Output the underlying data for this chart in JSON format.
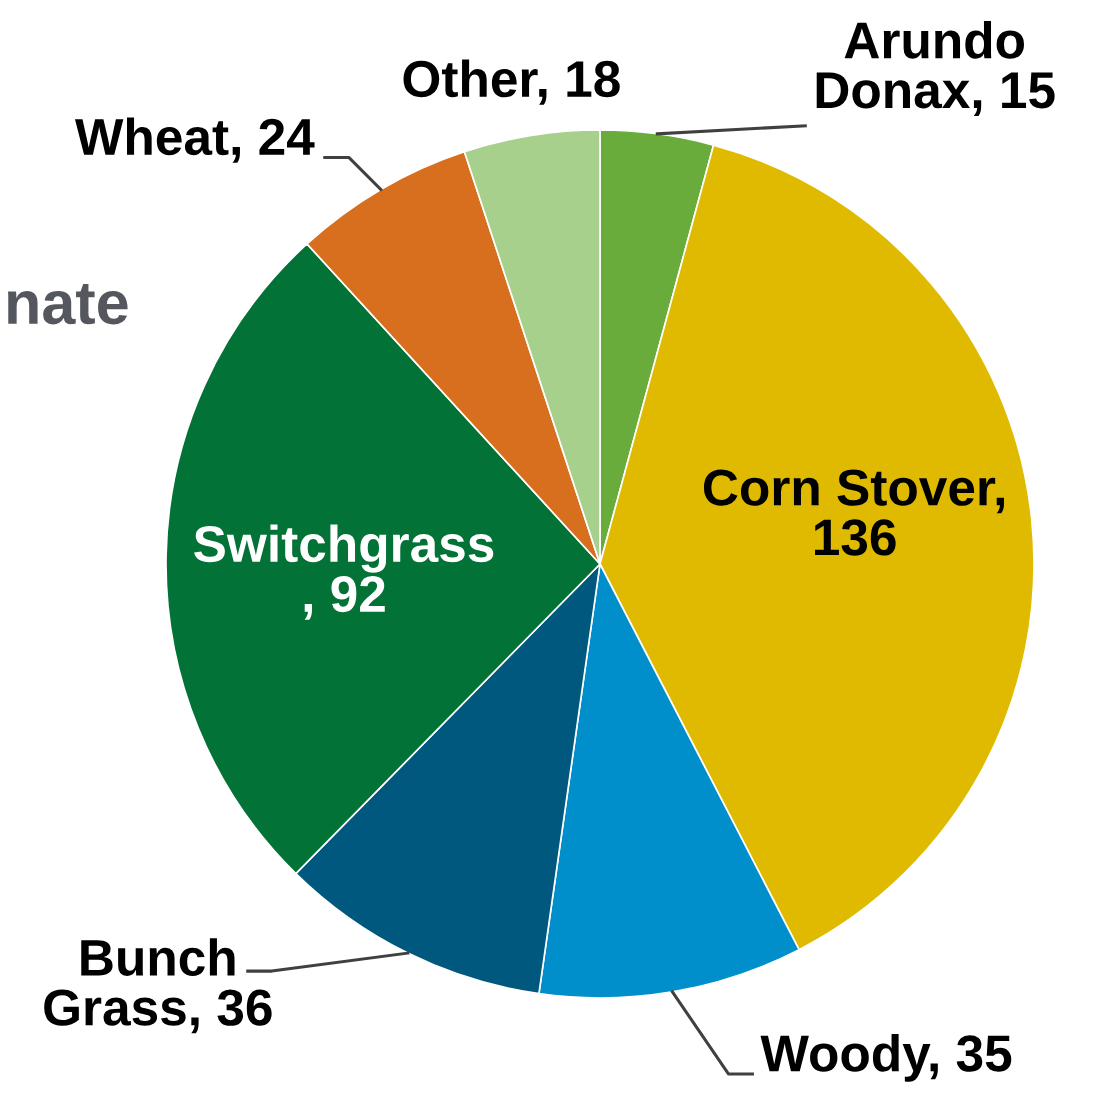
{
  "chart_data": {
    "type": "pie",
    "categories": [
      "Arundo Donax",
      "Corn Stover",
      "Woody",
      "Bunch Grass",
      "Switchgrass",
      "Wheat",
      "Other"
    ],
    "values": [
      15,
      136,
      35,
      36,
      92,
      24,
      18
    ],
    "value_labels": [
      ", 15",
      ", 136",
      ", 35",
      ", 36",
      ", 92",
      ", 24",
      ", 18"
    ],
    "colors": [
      "#6aac3b",
      "#e0ba00",
      "#008fcb",
      "#00587f",
      "#037236",
      "#d86f1f",
      "#a8d08d"
    ],
    "annotations": [
      "nate"
    ]
  }
}
